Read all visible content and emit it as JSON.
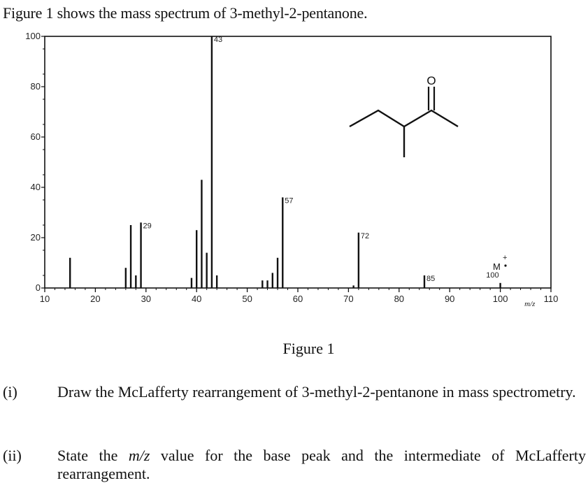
{
  "intro_text": "Figure 1 shows the mass spectrum of 3-methyl-2-pentanone.",
  "figure_caption": "Figure 1",
  "questions": [
    {
      "num": "(i)",
      "text": "Draw the McLafferty rearrangement of 3-methyl-2-pentanone in mass spectrometry."
    },
    {
      "num": "(ii)",
      "text_a": "State the ",
      "text_italic": "m/z",
      "text_b": " value for the base peak and the intermediate of McLafferty rearrangement."
    }
  ],
  "chart_data": {
    "type": "bar",
    "xlim": [
      10,
      110
    ],
    "ylim": [
      0,
      100
    ],
    "x_ticks": [
      10,
      20,
      30,
      40,
      50,
      60,
      70,
      80,
      90,
      100,
      110
    ],
    "y_ticks": [
      0,
      20,
      40,
      60,
      80,
      100
    ],
    "x_unit_label": "m/z",
    "peaks": [
      {
        "x": 15,
        "y": 12
      },
      {
        "x": 26,
        "y": 8
      },
      {
        "x": 27,
        "y": 25
      },
      {
        "x": 28,
        "y": 5
      },
      {
        "x": 29,
        "y": 26,
        "label": "29"
      },
      {
        "x": 39,
        "y": 4
      },
      {
        "x": 40,
        "y": 23
      },
      {
        "x": 41,
        "y": 43
      },
      {
        "x": 42,
        "y": 14
      },
      {
        "x": 43,
        "y": 100,
        "label": "43"
      },
      {
        "x": 44,
        "y": 5
      },
      {
        "x": 53,
        "y": 3
      },
      {
        "x": 54,
        "y": 3
      },
      {
        "x": 55,
        "y": 6
      },
      {
        "x": 56,
        "y": 12
      },
      {
        "x": 57,
        "y": 36,
        "label": "57"
      },
      {
        "x": 71,
        "y": 1
      },
      {
        "x": 72,
        "y": 22,
        "label": "72"
      },
      {
        "x": 85,
        "y": 5,
        "label": "85"
      },
      {
        "x": 100,
        "y": 2,
        "label": "100"
      }
    ],
    "molecular_ion_label": "M",
    "molecular_ion_charge": "+",
    "structure_atom_label": "O"
  }
}
